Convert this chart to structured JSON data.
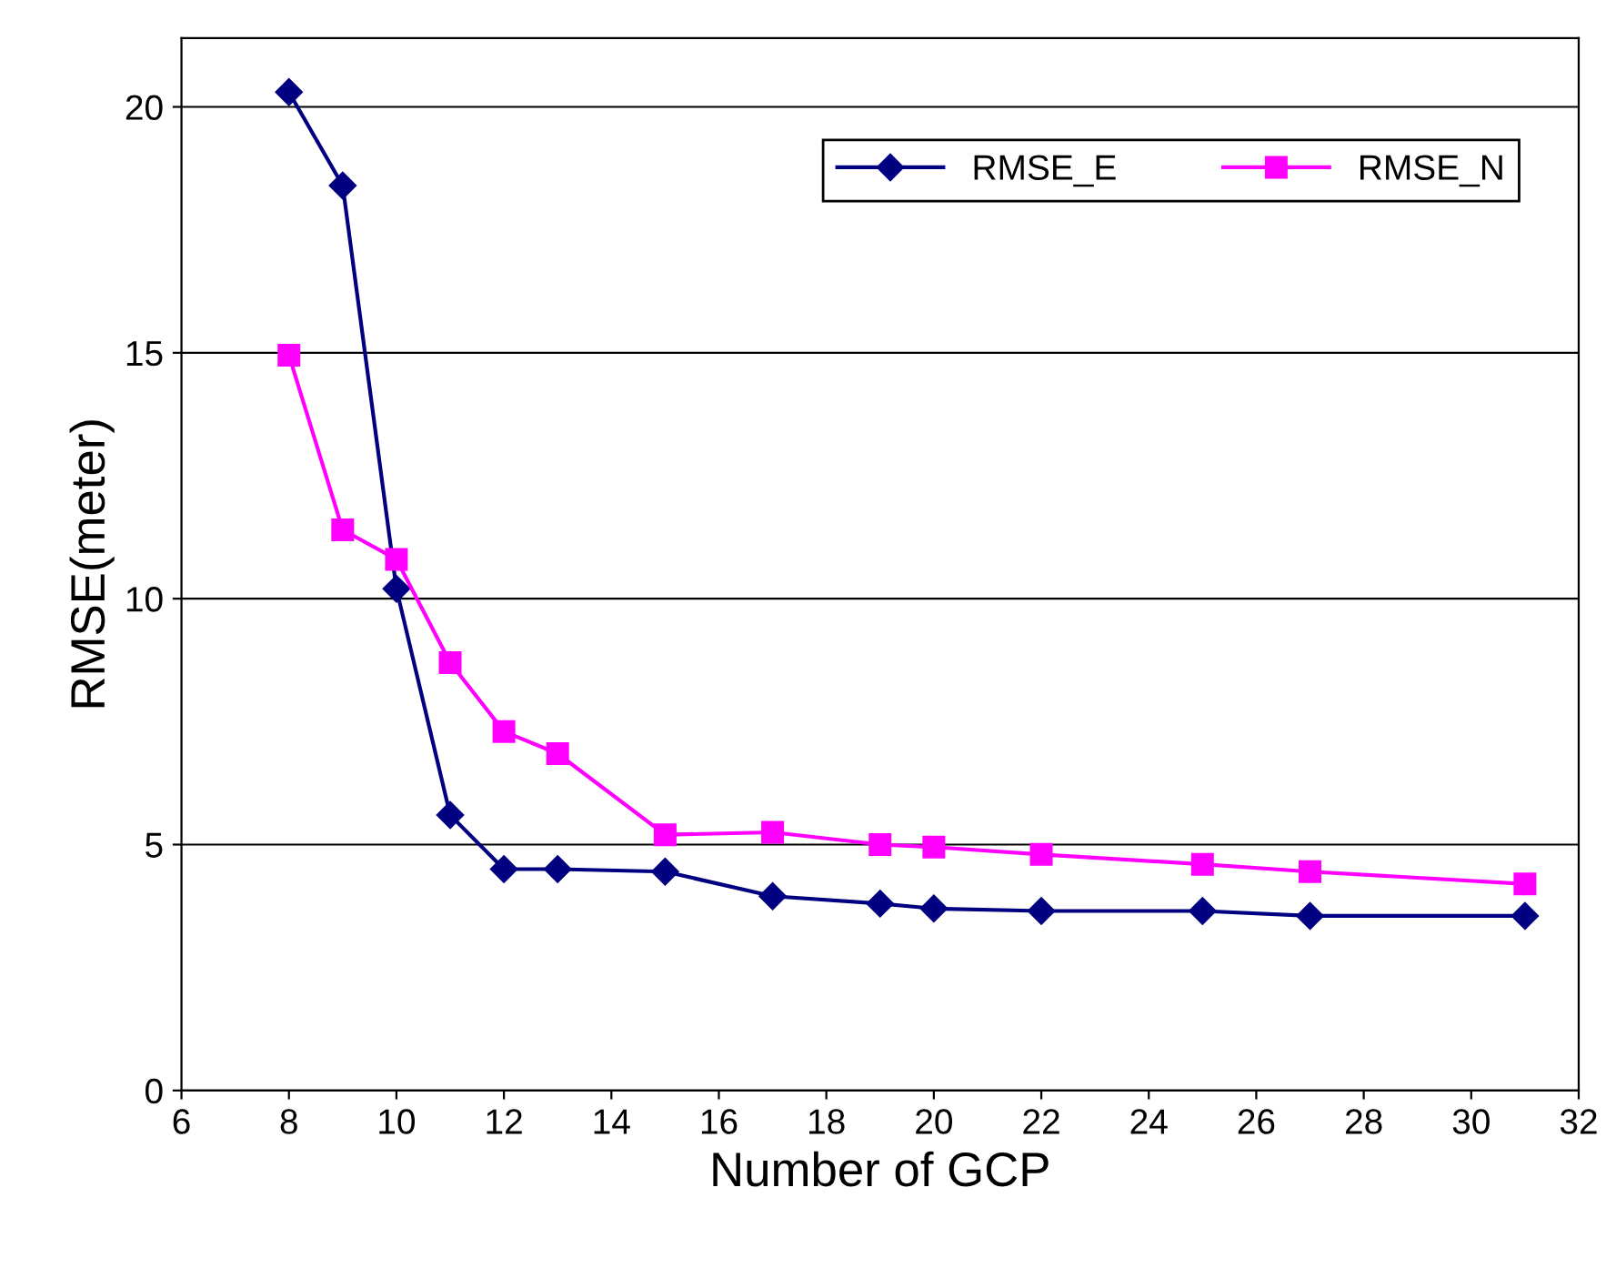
{
  "chart_data": {
    "type": "line",
    "xlabel": "Number of GCP",
    "ylabel": "RMSE(meter)",
    "xlim": [
      6,
      32
    ],
    "xticks": [
      6,
      8,
      10,
      12,
      14,
      16,
      18,
      20,
      22,
      24,
      26,
      28,
      30,
      32
    ],
    "ylim": [
      0,
      21.4
    ],
    "yticks": [
      0,
      5,
      10,
      15,
      20
    ],
    "grid": "y",
    "legend": "top right",
    "line_style": "solid",
    "series": [
      {
        "name": "RMSE_E",
        "color": "#000080",
        "marker": "diamond",
        "x": [
          8,
          9,
          10,
          11,
          12,
          13,
          15,
          17,
          19,
          20,
          22,
          25,
          27,
          31
        ],
        "values": [
          20.3,
          18.4,
          10.2,
          5.6,
          4.5,
          4.5,
          4.45,
          3.95,
          3.8,
          3.7,
          3.65,
          3.65,
          3.55,
          3.55
        ]
      },
      {
        "name": "RMSE_N",
        "color": "#ff00ff",
        "marker": "square",
        "x": [
          8,
          9,
          10,
          11,
          12,
          13,
          15,
          17,
          19,
          20,
          22,
          25,
          27,
          31
        ],
        "values": [
          14.95,
          11.4,
          10.8,
          8.7,
          7.3,
          6.85,
          5.2,
          5.25,
          5.0,
          4.95,
          4.8,
          4.6,
          4.45,
          4.2
        ]
      }
    ]
  }
}
